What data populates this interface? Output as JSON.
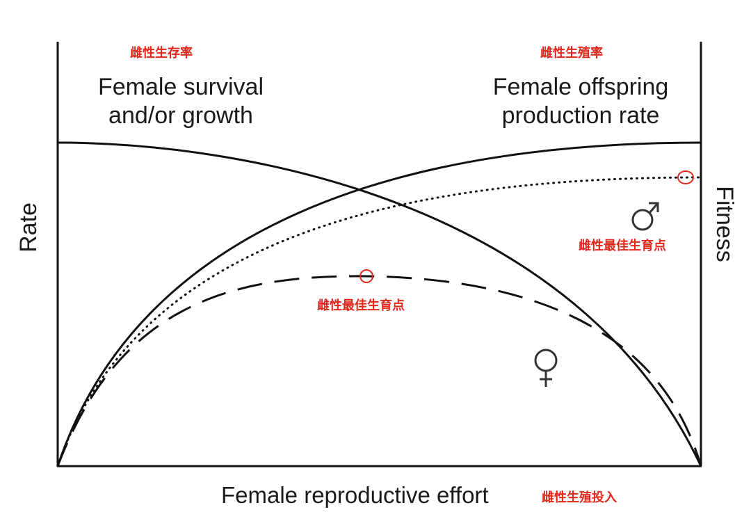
{
  "labels": {
    "left_title_cn": "雌性生存率",
    "left_title_en_1": "Female survival",
    "left_title_en_2": "and/or growth",
    "right_title_cn": "雌性生殖率",
    "right_title_en_1": "Female offspring",
    "right_title_en_2": "production rate",
    "y_left": "Rate",
    "y_right": "Fitness",
    "x_axis_en": "Female reproductive effort",
    "x_axis_cn": "雌性生殖投入",
    "male_optimum_cn": "雌性最佳生育点",
    "female_optimum_cn": "雌性最佳生育点"
  },
  "symbols": {
    "male": "male-symbol",
    "female": "female-symbol"
  },
  "colors": {
    "annotation": "#e0281c",
    "line": "#111111"
  },
  "curves": {
    "survival": "solid, decreasing",
    "offspring_production": "solid, increasing",
    "male_fitness": "dotted, increasing to maximum at right edge",
    "female_fitness": "dashed, hump-shaped with optimum at intermediate effort"
  }
}
